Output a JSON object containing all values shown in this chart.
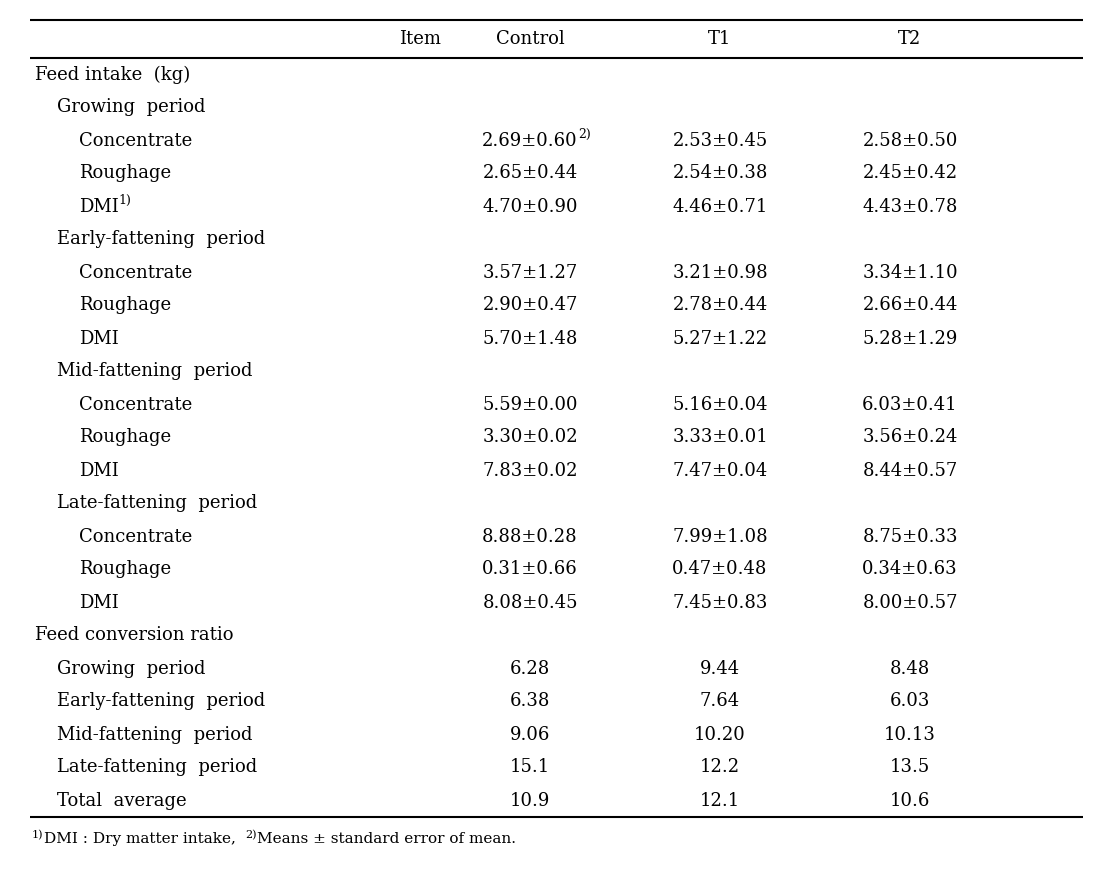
{
  "headers": [
    "Item",
    "Control",
    "T1",
    "T2"
  ],
  "rows": [
    {
      "text": "Feed intake  (kg)",
      "indent": 0,
      "control": "",
      "t1": "",
      "t2": "",
      "control_sup": "",
      "item_sup": ""
    },
    {
      "text": "Growing  period",
      "indent": 1,
      "control": "",
      "t1": "",
      "t2": "",
      "control_sup": "",
      "item_sup": ""
    },
    {
      "text": "Concentrate",
      "indent": 2,
      "control": "2.69±0.60",
      "t1": "2.53±0.45",
      "t2": "2.58±0.50",
      "control_sup": "2)",
      "item_sup": ""
    },
    {
      "text": "Roughage",
      "indent": 2,
      "control": "2.65±0.44",
      "t1": "2.54±0.38",
      "t2": "2.45±0.42",
      "control_sup": "",
      "item_sup": ""
    },
    {
      "text": "DMI",
      "indent": 2,
      "control": "4.70±0.90",
      "t1": "4.46±0.71",
      "t2": "4.43±0.78",
      "control_sup": "",
      "item_sup": "1)"
    },
    {
      "text": "Early-fattening  period",
      "indent": 1,
      "control": "",
      "t1": "",
      "t2": "",
      "control_sup": "",
      "item_sup": ""
    },
    {
      "text": "Concentrate",
      "indent": 2,
      "control": "3.57±1.27",
      "t1": "3.21±0.98",
      "t2": "3.34±1.10",
      "control_sup": "",
      "item_sup": ""
    },
    {
      "text": "Roughage",
      "indent": 2,
      "control": "2.90±0.47",
      "t1": "2.78±0.44",
      "t2": "2.66±0.44",
      "control_sup": "",
      "item_sup": ""
    },
    {
      "text": "DMI",
      "indent": 2,
      "control": "5.70±1.48",
      "t1": "5.27±1.22",
      "t2": "5.28±1.29",
      "control_sup": "",
      "item_sup": ""
    },
    {
      "text": "Mid-fattening  period",
      "indent": 1,
      "control": "",
      "t1": "",
      "t2": "",
      "control_sup": "",
      "item_sup": ""
    },
    {
      "text": "Concentrate",
      "indent": 2,
      "control": "5.59±0.00",
      "t1": "5.16±0.04",
      "t2": "6.03±0.41",
      "control_sup": "",
      "item_sup": ""
    },
    {
      "text": "Roughage",
      "indent": 2,
      "control": "3.30±0.02",
      "t1": "3.33±0.01",
      "t2": "3.56±0.24",
      "control_sup": "",
      "item_sup": ""
    },
    {
      "text": "DMI",
      "indent": 2,
      "control": "7.83±0.02",
      "t1": "7.47±0.04",
      "t2": "8.44±0.57",
      "control_sup": "",
      "item_sup": ""
    },
    {
      "text": "Late-fattening  period",
      "indent": 1,
      "control": "",
      "t1": "",
      "t2": "",
      "control_sup": "",
      "item_sup": ""
    },
    {
      "text": "Concentrate",
      "indent": 2,
      "control": "8.88±0.28",
      "t1": "7.99±1.08",
      "t2": "8.75±0.33",
      "control_sup": "",
      "item_sup": ""
    },
    {
      "text": "Roughage",
      "indent": 2,
      "control": "0.31±0.66",
      "t1": "0.47±0.48",
      "t2": "0.34±0.63",
      "control_sup": "",
      "item_sup": ""
    },
    {
      "text": "DMI",
      "indent": 2,
      "control": "8.08±0.45",
      "t1": "7.45±0.83",
      "t2": "8.00±0.57",
      "control_sup": "",
      "item_sup": ""
    },
    {
      "text": "Feed conversion ratio",
      "indent": 0,
      "control": "",
      "t1": "",
      "t2": "",
      "control_sup": "",
      "item_sup": ""
    },
    {
      "text": "Growing  period",
      "indent": 1,
      "control": "6.28",
      "t1": "9.44",
      "t2": "8.48",
      "control_sup": "",
      "item_sup": ""
    },
    {
      "text": "Early-fattening  period",
      "indent": 1,
      "control": "6.38",
      "t1": "7.64",
      "t2": "6.03",
      "control_sup": "",
      "item_sup": ""
    },
    {
      "text": "Mid-fattening  period",
      "indent": 1,
      "control": "9.06",
      "t1": "10.20",
      "t2": "10.13",
      "control_sup": "",
      "item_sup": ""
    },
    {
      "text": "Late-fattening  period",
      "indent": 1,
      "control": "15.1",
      "t1": "12.2",
      "t2": "13.5",
      "control_sup": "",
      "item_sup": ""
    },
    {
      "text": "Total  average",
      "indent": 1,
      "control": "10.9",
      "t1": "12.1",
      "t2": "10.6",
      "control_sup": "",
      "item_sup": ""
    }
  ],
  "footnote_parts": [
    {
      "text": "1)",
      "sup": true
    },
    {
      "text": "DMI : Dry matter intake,  ",
      "sup": false
    },
    {
      "text": "2)",
      "sup": true
    },
    {
      "text": "Means ± standard error of mean.",
      "sup": false
    }
  ],
  "bg_color": "#ffffff",
  "text_color": "#000000",
  "font_size": 13,
  "sup_font_size": 9,
  "header_font_size": 13
}
